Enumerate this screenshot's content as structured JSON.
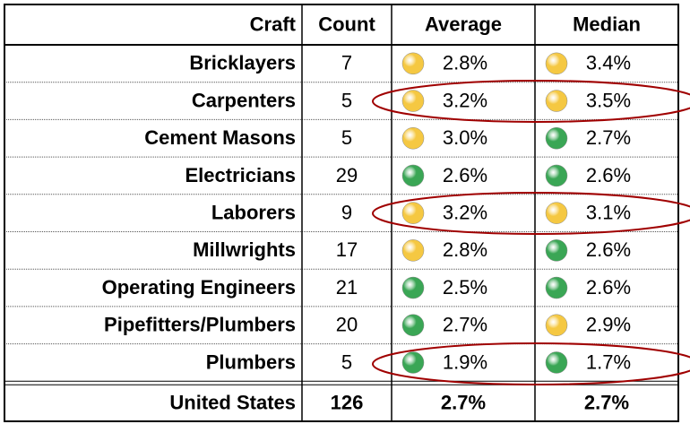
{
  "table": {
    "header": [
      "Craft",
      "Count",
      "Average",
      "Median"
    ],
    "rows": [
      {
        "craft": "Bricklayers",
        "count": "7",
        "average": "2.8%",
        "average_color": "#f5c842",
        "median": "3.4%",
        "median_color": "#f5c842"
      },
      {
        "craft": "Carpenters",
        "count": "5",
        "average": "3.2%",
        "average_color": "#f5c842",
        "median": "3.5%",
        "median_color": "#f5c842"
      },
      {
        "craft": "Cement Masons",
        "count": "5",
        "average": "3.0%",
        "average_color": "#f5c842",
        "median": "2.7%",
        "median_color": "#3aa655"
      },
      {
        "craft": "Electricians",
        "count": "29",
        "average": "2.6%",
        "average_color": "#3aa655",
        "median": "2.6%",
        "median_color": "#3aa655"
      },
      {
        "craft": "Laborers",
        "count": "9",
        "average": "3.2%",
        "average_color": "#f5c842",
        "median": "3.1%",
        "median_color": "#f5c842"
      },
      {
        "craft": "Millwrights",
        "count": "17",
        "average": "2.8%",
        "average_color": "#f5c842",
        "median": "2.6%",
        "median_color": "#3aa655"
      },
      {
        "craft": "Operating Engineers",
        "count": "21",
        "average": "2.5%",
        "average_color": "#3aa655",
        "median": "2.6%",
        "median_color": "#3aa655"
      },
      {
        "craft": "Pipefitters/Plumbers",
        "count": "20",
        "average": "2.7%",
        "average_color": "#3aa655",
        "median": "2.9%",
        "median_color": "#f5c842"
      },
      {
        "craft": "Plumbers",
        "count": "5",
        "average": "1.9%",
        "average_color": "#3aa655",
        "median": "1.7%",
        "median_color": "#3aa655"
      }
    ],
    "footer": {
      "craft": "United States",
      "count": "126",
      "average": "2.7%",
      "median": "2.7%"
    }
  }
}
